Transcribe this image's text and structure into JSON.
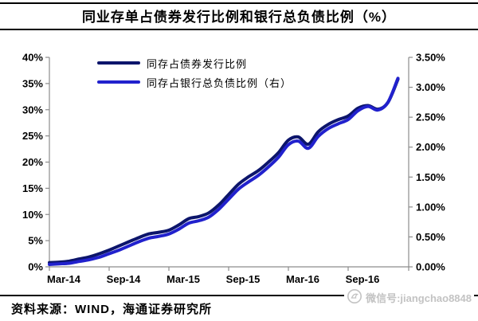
{
  "title": "同业存单占债券发行比例和银行总负债比例（%）",
  "source_note": "资料来源：WIND，海通证券研究所",
  "watermark": {
    "icon": "bird-logo",
    "text": "微信号:jiangchao8848"
  },
  "colors": {
    "series1": "#0c156b",
    "series2": "#2121cd",
    "axis": "#8c8c8c",
    "text": "#000000",
    "watermark_text": "#c3c3c3"
  },
  "legend": [
    {
      "label": "同存占债券发行比例",
      "color": "#0c156b"
    },
    {
      "label": "同存占银行总负债比例（右）",
      "color": "#2121cd"
    }
  ],
  "chart_data": {
    "type": "line",
    "x": [
      "Mar-14",
      "Apr-14",
      "May-14",
      "Jun-14",
      "Jul-14",
      "Aug-14",
      "Sep-14",
      "Oct-14",
      "Nov-14",
      "Dec-14",
      "Jan-15",
      "Feb-15",
      "Mar-15",
      "Apr-15",
      "May-15",
      "Jun-15",
      "Jul-15",
      "Aug-15",
      "Sep-15",
      "Oct-15",
      "Nov-15",
      "Dec-15",
      "Jan-16",
      "Feb-16",
      "Mar-16",
      "Apr-16",
      "May-16",
      "Jun-16",
      "Jul-16",
      "Aug-16",
      "Sep-16",
      "Oct-16",
      "Nov-16",
      "Dec-16",
      "Jan-17",
      "Feb-17"
    ],
    "x_tick_labels": [
      "Mar-14",
      "Sep-14",
      "Mar-15",
      "Sep-15",
      "Mar-16",
      "Sep-16"
    ],
    "left_axis": {
      "ticks": [
        "0%",
        "5%",
        "10%",
        "15%",
        "20%",
        "25%",
        "30%",
        "35%",
        "40%"
      ],
      "min": 0,
      "max": 40,
      "step": 5
    },
    "right_axis": {
      "ticks": [
        "0.00%",
        "0.50%",
        "1.00%",
        "1.50%",
        "2.00%",
        "2.50%",
        "3.00%",
        "3.50%"
      ],
      "min": 0,
      "max": 3.5,
      "step": 0.5
    },
    "grid": false,
    "legend_position": "top-left-inside",
    "series": [
      {
        "name": "同存占债券发行比例",
        "axis": "left",
        "color": "#0c156b",
        "values": [
          0.8,
          0.9,
          1.1,
          1.5,
          1.9,
          2.5,
          3.2,
          4.0,
          4.8,
          5.6,
          6.3,
          6.6,
          7.0,
          8.0,
          9.2,
          9.6,
          10.3,
          11.8,
          13.8,
          15.8,
          17.2,
          18.4,
          20.0,
          21.8,
          24.2,
          24.8,
          23.4,
          25.8,
          27.2,
          28.1,
          28.8,
          30.3,
          30.8,
          30.1,
          31.4,
          35.8
        ]
      },
      {
        "name": "同存占银行总负债比例（右）",
        "axis": "right",
        "color": "#2121cd",
        "values": [
          0.04,
          0.05,
          0.06,
          0.09,
          0.12,
          0.16,
          0.22,
          0.28,
          0.35,
          0.42,
          0.48,
          0.51,
          0.55,
          0.63,
          0.73,
          0.77,
          0.83,
          0.96,
          1.13,
          1.3,
          1.42,
          1.53,
          1.67,
          1.83,
          2.04,
          2.1,
          1.98,
          2.18,
          2.31,
          2.39,
          2.46,
          2.61,
          2.68,
          2.62,
          2.75,
          3.15
        ]
      }
    ]
  }
}
